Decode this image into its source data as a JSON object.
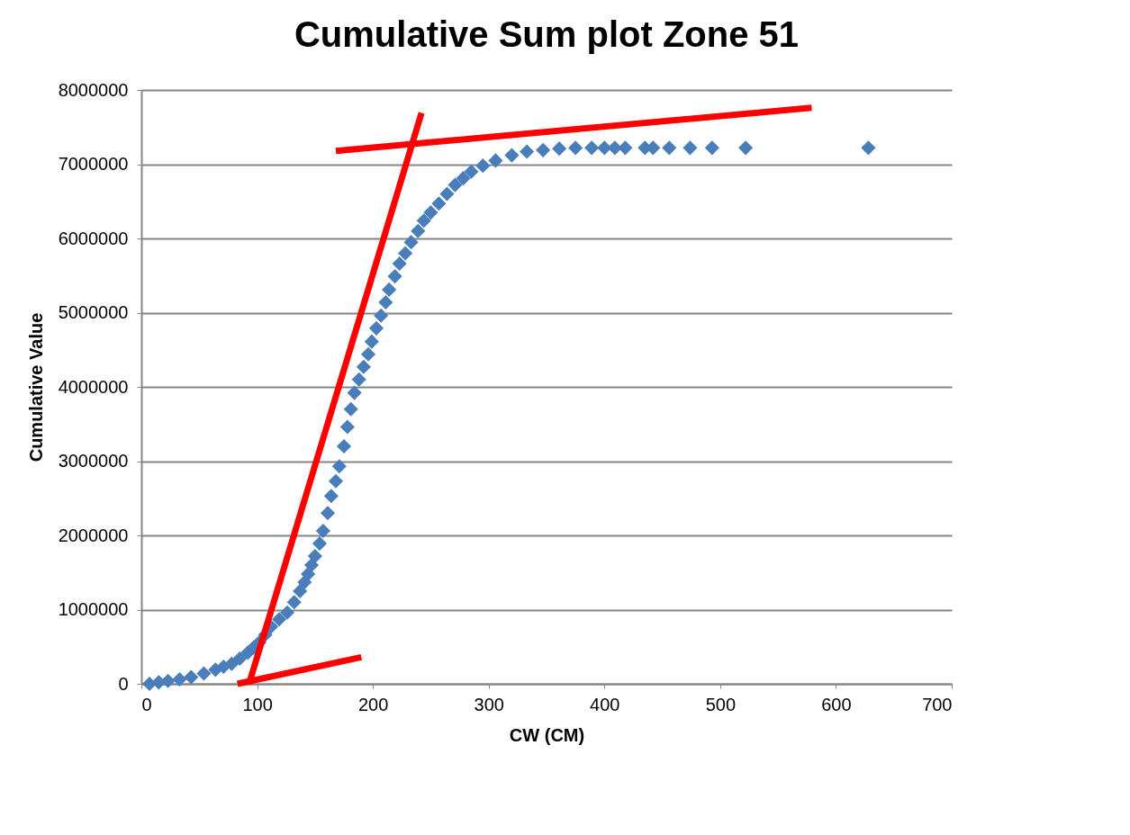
{
  "chart_data": {
    "type": "scatter",
    "title": "Cumulative Sum  plot  Zone 51",
    "xlabel": "CW (CM)",
    "ylabel": "Cumulative Value",
    "xlim": [
      0,
      700
    ],
    "xticks": [
      0,
      100,
      200,
      300,
      400,
      500,
      600,
      700
    ],
    "ylim": [
      0,
      8000000
    ],
    "yticks": [
      0,
      1000000,
      2000000,
      3000000,
      4000000,
      5000000,
      6000000,
      7000000,
      8000000
    ],
    "grid": "y",
    "marker": "diamond",
    "series": [
      {
        "color": "#4a7ebb",
        "x": [
          7,
          15,
          23,
          33,
          43,
          54,
          64,
          71,
          78,
          85,
          92,
          97,
          102,
          107,
          112,
          119,
          126,
          132,
          137,
          141,
          144,
          147,
          150,
          154,
          157,
          161,
          164,
          168,
          171,
          175,
          178,
          181,
          184,
          188,
          192,
          196,
          199,
          203,
          207,
          211,
          214,
          219,
          223,
          228,
          233,
          239,
          244,
          250,
          257,
          264,
          271,
          278,
          285,
          295,
          306,
          320,
          333,
          347,
          361,
          375,
          389,
          400,
          409,
          418,
          435,
          442,
          456,
          474,
          493,
          522,
          628
        ],
        "values": [
          0,
          20000,
          40000,
          60000,
          90000,
          140000,
          190000,
          230000,
          270000,
          340000,
          420000,
          490000,
          560000,
          660000,
          770000,
          870000,
          960000,
          1100000,
          1250000,
          1370000,
          1480000,
          1600000,
          1720000,
          1890000,
          2060000,
          2300000,
          2530000,
          2730000,
          2930000,
          3200000,
          3460000,
          3700000,
          3920000,
          4100000,
          4270000,
          4440000,
          4610000,
          4790000,
          4960000,
          5140000,
          5310000,
          5490000,
          5660000,
          5800000,
          5950000,
          6100000,
          6240000,
          6350000,
          6470000,
          6600000,
          6720000,
          6810000,
          6900000,
          6980000,
          7050000,
          7120000,
          7170000,
          7190000,
          7210000,
          7220000,
          7220000,
          7220000,
          7220000,
          7220000,
          7220000,
          7220000,
          7220000,
          7220000,
          7220000,
          7220000,
          7220000
        ]
      },
      {
        "type": "line",
        "color": "#ff0000",
        "line_style": "solid",
        "marker": "none",
        "x": [
          83,
          190
        ],
        "values": [
          0,
          360000
        ]
      },
      {
        "type": "line",
        "color": "#ff0000",
        "line_style": "solid",
        "marker": "none",
        "x": [
          93,
          242
        ],
        "values": [
          0,
          7690000
        ]
      },
      {
        "type": "line",
        "color": "#ff0000",
        "line_style": "solid",
        "marker": "none",
        "x": [
          168,
          579
        ],
        "values": [
          7180000,
          7760000
        ]
      }
    ]
  }
}
